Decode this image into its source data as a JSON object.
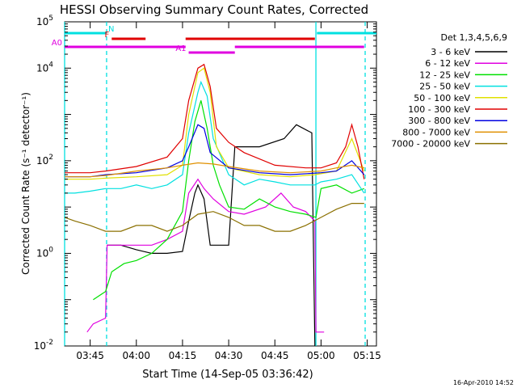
{
  "chart_data": {
    "type": "line",
    "title": "HESSI Observing Summary Count Rates, Corrected",
    "xlabel": "Start Time (14-Sep-05 03:36:42)",
    "ylabel": "Corrected Count Rate (s⁻¹ detector⁻¹)",
    "footer": "16-Apr-2010 14:52",
    "xlim": [
      "03:36:42",
      "05:18:00"
    ],
    "ylim": [
      0.01,
      100000
    ],
    "yscale": "log",
    "x_ticks": [
      "03:45",
      "04:00",
      "04:15",
      "04:30",
      "04:45",
      "05:00",
      "05:15"
    ],
    "y_ticks": [
      {
        "value": 0.01,
        "base": "10",
        "exp": "-2"
      },
      {
        "value": 1,
        "base": "10",
        "exp": "0"
      },
      {
        "value": 100,
        "base": "10",
        "exp": "2"
      },
      {
        "value": 10000,
        "base": "10",
        "exp": "4"
      },
      {
        "value": 100000,
        "base": "10",
        "exp": "5"
      }
    ],
    "legend": {
      "placement": "right",
      "header": "Det 1,3,4,5,6,9"
    },
    "attenuator_bars": [
      {
        "label": "N",
        "color": "#00e0e0",
        "segments": [
          [
            "03:36:42",
            "03:50:20"
          ],
          [
            "04:58:40",
            "05:18:00"
          ]
        ]
      },
      {
        "label": "F",
        "color": "#e00000",
        "segments": [
          [
            "03:52:00",
            "04:03:00"
          ],
          [
            "04:16:00",
            "04:58:00"
          ]
        ]
      },
      {
        "label": "A0",
        "color": "#e000e0",
        "segments": [
          [
            "03:36:42",
            "04:16:00"
          ],
          [
            "04:32:00",
            "05:14:00"
          ]
        ]
      },
      {
        "label": "A1",
        "color": "#e000e0",
        "segments": [
          [
            "04:17:00",
            "04:32:00"
          ]
        ]
      }
    ],
    "vlines": [
      {
        "time": "03:36:42",
        "style": "solid",
        "color": "#00e0e0"
      },
      {
        "time": "03:50:20",
        "style": "dashed",
        "color": "#00e0e0"
      },
      {
        "time": "04:58:20",
        "style": "solid",
        "color": "#00e0e0"
      },
      {
        "time": "05:14:20",
        "style": "dashed",
        "color": "#00e0e0"
      }
    ],
    "series": [
      {
        "name": "3 - 6 keV",
        "color": "#000000",
        "points": [
          [
            "03:50:30",
            1.5
          ],
          [
            "03:55:00",
            1.5
          ],
          [
            "04:00:00",
            1.2
          ],
          [
            "04:05:00",
            1.0
          ],
          [
            "04:10:00",
            1.0
          ],
          [
            "04:15:00",
            1.1
          ],
          [
            "04:17:00",
            5
          ],
          [
            "04:19:00",
            20
          ],
          [
            "04:20:00",
            30
          ],
          [
            "04:22:00",
            15
          ],
          [
            "04:24:00",
            1.5
          ],
          [
            "04:30:00",
            1.5
          ],
          [
            "04:32:00",
            200
          ],
          [
            "04:40:00",
            200
          ],
          [
            "04:48:00",
            300
          ],
          [
            "04:52:00",
            600
          ],
          [
            "04:57:00",
            400
          ],
          [
            "04:58:00",
            0.01
          ]
        ]
      },
      {
        "name": "6 - 12 keV",
        "color": "#e000e0",
        "points": [
          [
            "03:44:00",
            0.02
          ],
          [
            "03:46:00",
            0.03
          ],
          [
            "03:50:00",
            0.04
          ],
          [
            "03:50:30",
            1.5
          ],
          [
            "03:55:00",
            1.5
          ],
          [
            "04:00:00",
            1.5
          ],
          [
            "04:05:00",
            1.5
          ],
          [
            "04:10:00",
            2
          ],
          [
            "04:15:00",
            3
          ],
          [
            "04:17:00",
            20
          ],
          [
            "04:20:00",
            40
          ],
          [
            "04:22:00",
            25
          ],
          [
            "04:25:00",
            15
          ],
          [
            "04:30:00",
            8
          ],
          [
            "04:35:00",
            7
          ],
          [
            "04:42:00",
            10
          ],
          [
            "04:47:00",
            20
          ],
          [
            "04:51:00",
            10
          ],
          [
            "04:55:00",
            8
          ],
          [
            "04:58:00",
            5
          ],
          [
            "04:58:20",
            0.02
          ],
          [
            "05:01:00",
            0.02
          ]
        ]
      },
      {
        "name": "12 - 25 keV",
        "color": "#00e000",
        "points": [
          [
            "03:46:00",
            0.1
          ],
          [
            "03:50:00",
            0.15
          ],
          [
            "03:52:00",
            0.4
          ],
          [
            "03:56:00",
            0.6
          ],
          [
            "04:00:00",
            0.7
          ],
          [
            "04:05:00",
            1.0
          ],
          [
            "04:10:00",
            2
          ],
          [
            "04:15:00",
            8
          ],
          [
            "04:17:00",
            100
          ],
          [
            "04:19:00",
            700
          ],
          [
            "04:21:00",
            2000
          ],
          [
            "04:23:00",
            500
          ],
          [
            "04:25:00",
            80
          ],
          [
            "04:27:00",
            30
          ],
          [
            "04:30:00",
            10
          ],
          [
            "04:35:00",
            9
          ],
          [
            "04:40:00",
            15
          ],
          [
            "04:45:00",
            10
          ],
          [
            "04:50:00",
            8
          ],
          [
            "04:55:00",
            7
          ],
          [
            "04:58:20",
            6
          ],
          [
            "05:00:00",
            25
          ],
          [
            "05:05:00",
            30
          ],
          [
            "05:10:00",
            20
          ],
          [
            "05:14:00",
            25
          ]
        ]
      },
      {
        "name": "25 - 50 keV",
        "color": "#00e0e0",
        "points": [
          [
            "03:36:42",
            20
          ],
          [
            "03:40:00",
            20
          ],
          [
            "03:45:00",
            22
          ],
          [
            "03:50:00",
            25
          ],
          [
            "03:55:00",
            25
          ],
          [
            "04:00:00",
            30
          ],
          [
            "04:05:00",
            25
          ],
          [
            "04:10:00",
            30
          ],
          [
            "04:15:00",
            50
          ],
          [
            "04:17:00",
            400
          ],
          [
            "04:20:00",
            3000
          ],
          [
            "04:21:00",
            5000
          ],
          [
            "04:23:00",
            2500
          ],
          [
            "04:25:00",
            300
          ],
          [
            "04:30:00",
            50
          ],
          [
            "04:35:00",
            30
          ],
          [
            "04:40:00",
            40
          ],
          [
            "04:45:00",
            35
          ],
          [
            "04:50:00",
            30
          ],
          [
            "04:55:00",
            30
          ],
          [
            "04:58:00",
            30
          ],
          [
            "05:00:00",
            35
          ],
          [
            "05:05:00",
            40
          ],
          [
            "05:10:00",
            50
          ],
          [
            "05:14:00",
            20
          ]
        ]
      },
      {
        "name": "50 - 100 keV",
        "color": "#e0e000",
        "points": [
          [
            "03:36:42",
            40
          ],
          [
            "03:45:00",
            40
          ],
          [
            "03:50:00",
            42
          ],
          [
            "04:00:00",
            45
          ],
          [
            "04:10:00",
            50
          ],
          [
            "04:15:00",
            80
          ],
          [
            "04:17:00",
            1000
          ],
          [
            "04:20:00",
            8000
          ],
          [
            "04:22:00",
            10000
          ],
          [
            "04:24:00",
            3000
          ],
          [
            "04:26:00",
            200
          ],
          [
            "04:30:00",
            70
          ],
          [
            "04:40:00",
            50
          ],
          [
            "04:50:00",
            45
          ],
          [
            "04:58:00",
            50
          ],
          [
            "05:05:00",
            60
          ],
          [
            "05:10:00",
            300
          ],
          [
            "05:14:00",
            60
          ]
        ]
      },
      {
        "name": "100 - 300 keV",
        "color": "#e00000",
        "points": [
          [
            "03:36:42",
            55
          ],
          [
            "03:45:00",
            55
          ],
          [
            "03:50:00",
            60
          ],
          [
            "04:00:00",
            75
          ],
          [
            "04:10:00",
            120
          ],
          [
            "04:15:00",
            300
          ],
          [
            "04:17:00",
            2000
          ],
          [
            "04:20:00",
            10000
          ],
          [
            "04:22:00",
            12000
          ],
          [
            "04:24:00",
            4000
          ],
          [
            "04:26:00",
            500
          ],
          [
            "04:30:00",
            250
          ],
          [
            "04:35:00",
            150
          ],
          [
            "04:45:00",
            80
          ],
          [
            "04:55:00",
            70
          ],
          [
            "05:00:00",
            70
          ],
          [
            "05:05:00",
            90
          ],
          [
            "05:08:00",
            200
          ],
          [
            "05:10:00",
            600
          ],
          [
            "05:12:00",
            200
          ],
          [
            "05:14:00",
            40
          ]
        ]
      },
      {
        "name": "300 - 800 keV",
        "color": "#0000e0",
        "points": [
          [
            "03:36:42",
            45
          ],
          [
            "03:45:00",
            45
          ],
          [
            "03:50:00",
            50
          ],
          [
            "04:00:00",
            55
          ],
          [
            "04:10:00",
            70
          ],
          [
            "04:15:00",
            100
          ],
          [
            "04:17:00",
            200
          ],
          [
            "04:20:00",
            600
          ],
          [
            "04:22:00",
            500
          ],
          [
            "04:24:00",
            150
          ],
          [
            "04:30:00",
            70
          ],
          [
            "04:40:00",
            55
          ],
          [
            "04:50:00",
            50
          ],
          [
            "05:00:00",
            55
          ],
          [
            "05:05:00",
            60
          ],
          [
            "05:10:00",
            100
          ],
          [
            "05:14:00",
            50
          ]
        ]
      },
      {
        "name": "800 - 7000 keV",
        "color": "#e09000",
        "points": [
          [
            "03:36:42",
            45
          ],
          [
            "03:45:00",
            45
          ],
          [
            "03:50:00",
            48
          ],
          [
            "04:00:00",
            60
          ],
          [
            "04:10:00",
            70
          ],
          [
            "04:15:00",
            80
          ],
          [
            "04:20:00",
            90
          ],
          [
            "04:25:00",
            85
          ],
          [
            "04:30:00",
            75
          ],
          [
            "04:40:00",
            60
          ],
          [
            "04:50:00",
            55
          ],
          [
            "05:00:00",
            60
          ],
          [
            "05:05:00",
            70
          ],
          [
            "05:10:00",
            80
          ],
          [
            "05:14:00",
            70
          ]
        ]
      },
      {
        "name": "7000 - 20000 keV",
        "color": "#8b7000",
        "points": [
          [
            "03:36:42",
            6
          ],
          [
            "03:40:00",
            5
          ],
          [
            "03:45:00",
            4
          ],
          [
            "03:50:00",
            3
          ],
          [
            "03:55:00",
            3
          ],
          [
            "04:00:00",
            4
          ],
          [
            "04:05:00",
            4
          ],
          [
            "04:10:00",
            3
          ],
          [
            "04:15:00",
            4
          ],
          [
            "04:20:00",
            7
          ],
          [
            "04:25:00",
            8
          ],
          [
            "04:30:00",
            6
          ],
          [
            "04:35:00",
            4
          ],
          [
            "04:40:00",
            4
          ],
          [
            "04:45:00",
            3
          ],
          [
            "04:50:00",
            3
          ],
          [
            "04:55:00",
            4
          ],
          [
            "05:00:00",
            6
          ],
          [
            "05:05:00",
            9
          ],
          [
            "05:10:00",
            12
          ],
          [
            "05:14:00",
            12
          ]
        ]
      }
    ]
  }
}
